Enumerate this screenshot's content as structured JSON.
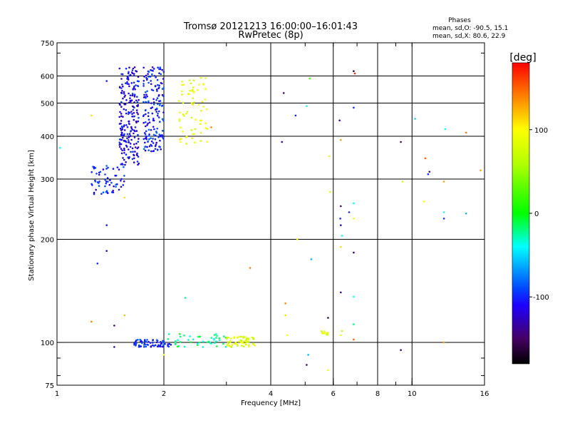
{
  "chart_data": {
    "type": "scatter",
    "title": "Tromsø 20121213 16:00:00–16:01:43",
    "subtitle": "RwPretec (8p)",
    "xlabel": "Frequency [MHz]",
    "ylabel": "Stationary phase Virtual Height [km]",
    "x_scale": "log",
    "y_scale": "log",
    "xlim": [
      1,
      16
    ],
    "ylim": [
      75,
      750
    ],
    "x_ticks": [
      1,
      2,
      4,
      6,
      8,
      10,
      16
    ],
    "y_ticks": [
      75,
      100,
      200,
      300,
      400,
      500,
      600,
      750
    ],
    "grid_x": [
      2,
      4,
      6,
      8,
      10
    ],
    "grid_y": [
      100,
      200,
      300,
      400,
      500,
      600
    ],
    "grid": true,
    "stats": {
      "heading": "Phases",
      "line1": "mean, sd,O: -90.5, 15.1",
      "line2": "mean, sd,X:  80.6, 22.9"
    },
    "colorbar": {
      "label": "[deg]",
      "range": [
        -180,
        180
      ],
      "ticks": [
        100,
        0,
        -100
      ],
      "colors": [
        "#000000",
        "#400060",
        "#2000ff",
        "#00ffff",
        "#00ff00",
        "#ffff00",
        "#ff8000",
        "#ff0000"
      ]
    },
    "clusters": [
      {
        "x_range": [
          1.25,
          1.55
        ],
        "y_range": [
          270,
          330
        ],
        "phase": -100,
        "count": 60
      },
      {
        "x_range": [
          1.5,
          1.7
        ],
        "y_range": [
          330,
          640
        ],
        "phase": -110,
        "count": 220
      },
      {
        "x_range": [
          1.75,
          2.0
        ],
        "y_range": [
          360,
          640
        ],
        "phase": -100,
        "count": 170
      },
      {
        "x_range": [
          2.2,
          2.65
        ],
        "y_range": [
          380,
          600
        ],
        "phase": 90,
        "count": 70
      },
      {
        "x_range": [
          1.65,
          2.1
        ],
        "y_range": [
          97,
          102
        ],
        "phase": -100,
        "count": 70
      },
      {
        "x_range": [
          2.05,
          3.0
        ],
        "y_range": [
          97,
          106
        ],
        "phase": -20,
        "count": 45
      },
      {
        "x_range": [
          3.0,
          3.6
        ],
        "y_range": [
          97,
          104
        ],
        "phase": 80,
        "count": 60
      },
      {
        "x_range": [
          5.55,
          5.8
        ],
        "y_range": [
          105,
          108
        ],
        "phase": 80,
        "count": 12
      }
    ],
    "points": [
      {
        "x": 1.02,
        "y": 370,
        "phase": -40
      },
      {
        "x": 1.38,
        "y": 580,
        "phase": -100
      },
      {
        "x": 1.25,
        "y": 460,
        "phase": 110
      },
      {
        "x": 1.35,
        "y": 320,
        "phase": -120
      },
      {
        "x": 1.38,
        "y": 220,
        "phase": -100
      },
      {
        "x": 1.38,
        "y": 185,
        "phase": -120
      },
      {
        "x": 1.3,
        "y": 170,
        "phase": -100
      },
      {
        "x": 1.25,
        "y": 115,
        "phase": 140
      },
      {
        "x": 1.45,
        "y": 112,
        "phase": -140
      },
      {
        "x": 1.45,
        "y": 97,
        "phase": -130
      },
      {
        "x": 1.55,
        "y": 265,
        "phase": 110
      },
      {
        "x": 1.55,
        "y": 120,
        "phase": 120
      },
      {
        "x": 1.85,
        "y": 375,
        "phase": -100
      },
      {
        "x": 2.0,
        "y": 92,
        "phase": 90
      },
      {
        "x": 2.45,
        "y": 420,
        "phase": 80
      },
      {
        "x": 2.72,
        "y": 425,
        "phase": 140
      },
      {
        "x": 2.3,
        "y": 135,
        "phase": -20
      },
      {
        "x": 3.5,
        "y": 165,
        "phase": 140
      },
      {
        "x": 4.35,
        "y": 535,
        "phase": -150
      },
      {
        "x": 4.3,
        "y": 385,
        "phase": -140
      },
      {
        "x": 4.4,
        "y": 130,
        "phase": 140
      },
      {
        "x": 4.4,
        "y": 120,
        "phase": 110
      },
      {
        "x": 4.45,
        "y": 105,
        "phase": 100
      },
      {
        "x": 4.7,
        "y": 460,
        "phase": -100
      },
      {
        "x": 4.75,
        "y": 200,
        "phase": 90
      },
      {
        "x": 5.05,
        "y": 490,
        "phase": -40
      },
      {
        "x": 5.15,
        "y": 590,
        "phase": 20
      },
      {
        "x": 5.2,
        "y": 175,
        "phase": -60
      },
      {
        "x": 5.1,
        "y": 92,
        "phase": -60
      },
      {
        "x": 5.05,
        "y": 86,
        "phase": -150
      },
      {
        "x": 5.85,
        "y": 350,
        "phase": 90
      },
      {
        "x": 5.88,
        "y": 275,
        "phase": 80
      },
      {
        "x": 5.8,
        "y": 118,
        "phase": -160
      },
      {
        "x": 5.8,
        "y": 83,
        "phase": 90
      },
      {
        "x": 6.25,
        "y": 445,
        "phase": -130
      },
      {
        "x": 6.3,
        "y": 390,
        "phase": 130
      },
      {
        "x": 6.3,
        "y": 250,
        "phase": -150
      },
      {
        "x": 6.28,
        "y": 230,
        "phase": -100
      },
      {
        "x": 6.3,
        "y": 220,
        "phase": -120
      },
      {
        "x": 6.3,
        "y": 190,
        "phase": 110
      },
      {
        "x": 6.35,
        "y": 205,
        "phase": -40
      },
      {
        "x": 6.3,
        "y": 140,
        "phase": -130
      },
      {
        "x": 6.35,
        "y": 108,
        "phase": 60
      },
      {
        "x": 6.3,
        "y": 105,
        "phase": 90
      },
      {
        "x": 6.65,
        "y": 240,
        "phase": -100
      },
      {
        "x": 6.85,
        "y": 620,
        "phase": -160
      },
      {
        "x": 6.9,
        "y": 610,
        "phase": 170
      },
      {
        "x": 6.85,
        "y": 485,
        "phase": -100
      },
      {
        "x": 6.85,
        "y": 255,
        "phase": -40
      },
      {
        "x": 6.85,
        "y": 230,
        "phase": 90
      },
      {
        "x": 6.85,
        "y": 183,
        "phase": -140
      },
      {
        "x": 6.85,
        "y": 136,
        "phase": -40
      },
      {
        "x": 6.85,
        "y": 113,
        "phase": -20
      },
      {
        "x": 6.85,
        "y": 102,
        "phase": 150
      },
      {
        "x": 9.3,
        "y": 385,
        "phase": -150
      },
      {
        "x": 9.4,
        "y": 295,
        "phase": 70
      },
      {
        "x": 9.3,
        "y": 95,
        "phase": -140
      },
      {
        "x": 10.2,
        "y": 450,
        "phase": -50
      },
      {
        "x": 10.9,
        "y": 345,
        "phase": 150
      },
      {
        "x": 11.1,
        "y": 310,
        "phase": -100
      },
      {
        "x": 11.2,
        "y": 315,
        "phase": -150
      },
      {
        "x": 10.8,
        "y": 258,
        "phase": 100
      },
      {
        "x": 12.4,
        "y": 420,
        "phase": -40
      },
      {
        "x": 12.3,
        "y": 295,
        "phase": 130
      },
      {
        "x": 12.3,
        "y": 240,
        "phase": -40
      },
      {
        "x": 12.3,
        "y": 230,
        "phase": -100
      },
      {
        "x": 12.3,
        "y": 100,
        "phase": 130
      },
      {
        "x": 14.2,
        "y": 410,
        "phase": 140
      },
      {
        "x": 14.2,
        "y": 238,
        "phase": -60
      },
      {
        "x": 15.6,
        "y": 318,
        "phase": 130
      }
    ]
  }
}
